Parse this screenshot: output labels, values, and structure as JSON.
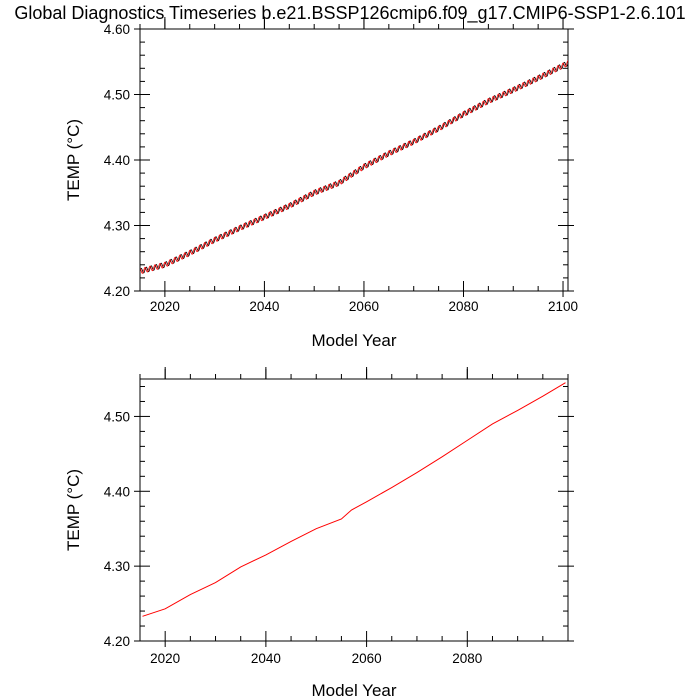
{
  "page": {
    "title": "Global Diagnostics Timeseries b.e21.BSSP126cmip6.f09_g17.CMIP6-SSP1-2.6.101"
  },
  "colors": {
    "monthly_series": "#000000",
    "annual_series": "#ff0000",
    "axes": "#000000",
    "background": "#ffffff"
  },
  "chart_data": [
    {
      "type": "line",
      "xlabel": "Model Year",
      "ylabel": "TEMP (°C)",
      "xlim": [
        2015,
        2101
      ],
      "ylim": [
        4.2,
        4.6
      ],
      "xticks": [
        2020,
        2040,
        2060,
        2080,
        2100
      ],
      "xtick_labels": [
        "2020",
        "2040",
        "2060",
        "2080",
        "2100"
      ],
      "yticks": [
        4.2,
        4.3,
        4.4,
        4.5,
        4.6
      ],
      "ytick_labels": [
        "4.20",
        "4.30",
        "4.40",
        "4.50",
        "4.60"
      ],
      "grid": false,
      "series": [
        {
          "color": "#000000",
          "seasonal_amplitude": 0.004,
          "x": [
            2015,
            2020,
            2025,
            2030,
            2035,
            2040,
            2045,
            2050,
            2055,
            2060,
            2065,
            2070,
            2075,
            2080,
            2085,
            2090,
            2095,
            2101
          ],
          "values": [
            4.23,
            4.24,
            4.258,
            4.278,
            4.296,
            4.313,
            4.33,
            4.35,
            4.365,
            4.39,
            4.41,
            4.428,
            4.448,
            4.47,
            4.49,
            4.507,
            4.525,
            4.548
          ]
        },
        {
          "color": "#ff0000",
          "seasonal_amplitude": 0.004,
          "x": [
            2015,
            2020,
            2025,
            2030,
            2035,
            2040,
            2045,
            2050,
            2055,
            2060,
            2065,
            2070,
            2075,
            2080,
            2085,
            2090,
            2095,
            2101
          ],
          "values": [
            4.23,
            4.24,
            4.258,
            4.278,
            4.296,
            4.313,
            4.33,
            4.35,
            4.365,
            4.39,
            4.41,
            4.428,
            4.448,
            4.47,
            4.49,
            4.507,
            4.525,
            4.548
          ]
        }
      ]
    },
    {
      "type": "line",
      "xlabel": "Model Year",
      "ylabel": "TEMP (°C)",
      "xlim": [
        2015,
        2100
      ],
      "ylim": [
        4.2,
        4.55
      ],
      "xticks": [
        2020,
        2040,
        2060,
        2080
      ],
      "xtick_labels": [
        "2020",
        "2040",
        "2060",
        "2080"
      ],
      "yticks": [
        4.2,
        4.3,
        4.4,
        4.5
      ],
      "ytick_labels": [
        "4.20",
        "4.30",
        "4.40",
        "4.50"
      ],
      "grid": false,
      "series": [
        {
          "color": "#ff0000",
          "x": [
            2015.5,
            2020,
            2025,
            2030,
            2035,
            2040,
            2045,
            2050,
            2055,
            2057,
            2060,
            2065,
            2070,
            2075,
            2080,
            2085,
            2090,
            2095,
            2099.5
          ],
          "values": [
            4.233,
            4.243,
            4.262,
            4.278,
            4.299,
            4.315,
            4.333,
            4.35,
            4.363,
            4.375,
            4.386,
            4.405,
            4.425,
            4.446,
            4.468,
            4.49,
            4.508,
            4.527,
            4.545
          ]
        }
      ]
    }
  ]
}
